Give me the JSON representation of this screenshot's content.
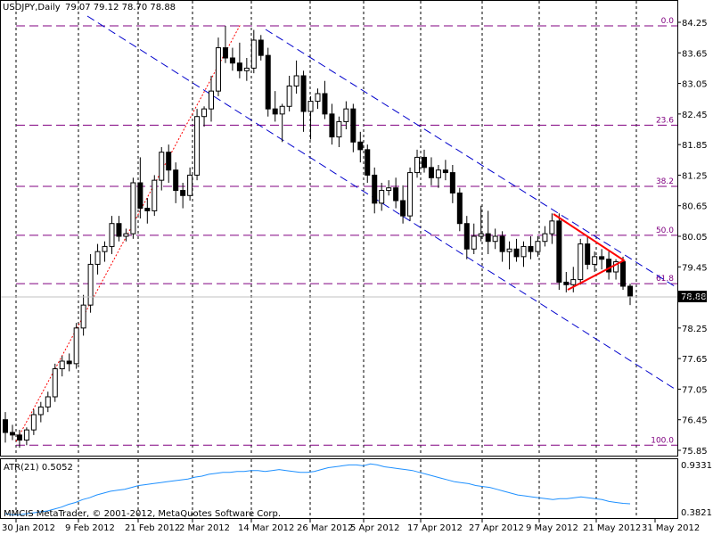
{
  "header": {
    "symbol": "USDJPY,Daily",
    "ohlc": "79.07 79.12 78.70 78.88"
  },
  "indicator": {
    "label": "ATR(21) 0.5052",
    "max_label": "0.9331",
    "min_label": "0.3821"
  },
  "copyright": "MMCIS MetaTrader, © 2001-2012, MetaQuotes Software Corp.",
  "price_axis": {
    "ticks": [
      "84.25",
      "83.65",
      "83.05",
      "82.45",
      "81.85",
      "81.25",
      "80.65",
      "80.05",
      "79.45",
      "78.85",
      "78.25",
      "77.65",
      "77.05",
      "76.45",
      "75.85"
    ],
    "current_price": "78.88"
  },
  "date_axis": {
    "ticks": [
      "30 Jan 2012",
      "9 Feb 2012",
      "21 Feb 2012",
      "2 Mar 2012",
      "14 Mar 2012",
      "26 Mar 2012",
      "5 Apr 2012",
      "17 Apr 2012",
      "27 Apr 2012",
      "9 May 2012",
      "21 May 2012",
      "31 May 2012"
    ]
  },
  "fib_levels": [
    {
      "label": "0.0",
      "price": 84.18
    },
    {
      "label": "23.6",
      "price": 82.23
    },
    {
      "label": "38.2",
      "price": 81.03
    },
    {
      "label": "50.0",
      "price": 80.07
    },
    {
      "label": "61.8",
      "price": 79.12
    },
    {
      "label": "100.0",
      "price": 75.95
    }
  ],
  "colors": {
    "background": "#ffffff",
    "fib_line": "#800080",
    "channel": "#0000cc",
    "trend": "#ff0000",
    "triangle": "#ff0000",
    "atr": "#1e90ff",
    "candle": "#000000"
  },
  "chart_data": {
    "type": "candlestick",
    "symbol": "USDJPY",
    "timeframe": "Daily",
    "ylim": [
      75.6,
      84.6
    ],
    "candles": [
      {
        "o": 76.45,
        "h": 76.6,
        "l": 76.0,
        "c": 76.2
      },
      {
        "o": 76.2,
        "h": 76.35,
        "l": 76.05,
        "c": 76.15
      },
      {
        "o": 76.15,
        "h": 76.25,
        "l": 75.9,
        "c": 76.05
      },
      {
        "o": 76.05,
        "h": 76.3,
        "l": 75.95,
        "c": 76.25
      },
      {
        "o": 76.25,
        "h": 76.65,
        "l": 76.15,
        "c": 76.55
      },
      {
        "o": 76.55,
        "h": 76.8,
        "l": 76.4,
        "c": 76.7
      },
      {
        "o": 76.7,
        "h": 77.0,
        "l": 76.6,
        "c": 76.9
      },
      {
        "o": 76.9,
        "h": 77.55,
        "l": 76.8,
        "c": 77.45
      },
      {
        "o": 77.45,
        "h": 77.7,
        "l": 77.3,
        "c": 77.6
      },
      {
        "o": 77.6,
        "h": 77.75,
        "l": 77.4,
        "c": 77.55
      },
      {
        "o": 77.55,
        "h": 78.35,
        "l": 77.45,
        "c": 78.25
      },
      {
        "o": 78.25,
        "h": 78.9,
        "l": 78.1,
        "c": 78.7
      },
      {
        "o": 78.7,
        "h": 79.7,
        "l": 78.55,
        "c": 79.5
      },
      {
        "o": 79.5,
        "h": 79.9,
        "l": 79.3,
        "c": 79.75
      },
      {
        "o": 79.75,
        "h": 79.95,
        "l": 79.55,
        "c": 79.85
      },
      {
        "o": 79.85,
        "h": 80.45,
        "l": 79.7,
        "c": 80.3
      },
      {
        "o": 80.3,
        "h": 80.45,
        "l": 79.95,
        "c": 80.05
      },
      {
        "o": 80.05,
        "h": 80.2,
        "l": 79.95,
        "c": 80.1
      },
      {
        "o": 80.1,
        "h": 81.2,
        "l": 80.0,
        "c": 81.1
      },
      {
        "o": 81.1,
        "h": 81.6,
        "l": 80.4,
        "c": 80.6
      },
      {
        "o": 80.6,
        "h": 80.8,
        "l": 80.3,
        "c": 80.55
      },
      {
        "o": 80.55,
        "h": 81.25,
        "l": 80.45,
        "c": 81.15
      },
      {
        "o": 81.15,
        "h": 81.8,
        "l": 80.95,
        "c": 81.7
      },
      {
        "o": 81.7,
        "h": 81.85,
        "l": 81.1,
        "c": 81.35
      },
      {
        "o": 81.35,
        "h": 81.5,
        "l": 80.7,
        "c": 80.95
      },
      {
        "o": 80.95,
        "h": 81.1,
        "l": 80.6,
        "c": 80.85
      },
      {
        "o": 80.85,
        "h": 81.4,
        "l": 80.75,
        "c": 81.25
      },
      {
        "o": 81.25,
        "h": 82.55,
        "l": 81.15,
        "c": 82.4
      },
      {
        "o": 82.4,
        "h": 82.6,
        "l": 82.2,
        "c": 82.55
      },
      {
        "o": 82.55,
        "h": 83.2,
        "l": 82.3,
        "c": 82.9
      },
      {
        "o": 82.9,
        "h": 83.95,
        "l": 82.8,
        "c": 83.75
      },
      {
        "o": 83.75,
        "h": 84.18,
        "l": 83.45,
        "c": 83.55
      },
      {
        "o": 83.55,
        "h": 83.75,
        "l": 83.3,
        "c": 83.45
      },
      {
        "o": 83.45,
        "h": 83.85,
        "l": 83.15,
        "c": 83.3
      },
      {
        "o": 83.3,
        "h": 83.55,
        "l": 83.1,
        "c": 83.35
      },
      {
        "o": 83.35,
        "h": 84.1,
        "l": 83.25,
        "c": 83.9
      },
      {
        "o": 83.9,
        "h": 84.0,
        "l": 83.5,
        "c": 83.6
      },
      {
        "o": 83.6,
        "h": 83.75,
        "l": 82.4,
        "c": 82.55
      },
      {
        "o": 82.55,
        "h": 82.9,
        "l": 82.3,
        "c": 82.45
      },
      {
        "o": 82.45,
        "h": 82.65,
        "l": 81.9,
        "c": 82.6
      },
      {
        "o": 82.6,
        "h": 83.2,
        "l": 82.5,
        "c": 83.0
      },
      {
        "o": 83.0,
        "h": 83.5,
        "l": 82.85,
        "c": 83.2
      },
      {
        "o": 83.2,
        "h": 83.3,
        "l": 82.1,
        "c": 82.5
      },
      {
        "o": 82.5,
        "h": 82.8,
        "l": 81.95,
        "c": 82.7
      },
      {
        "o": 82.7,
        "h": 82.95,
        "l": 82.55,
        "c": 82.85
      },
      {
        "o": 82.85,
        "h": 83.1,
        "l": 82.35,
        "c": 82.45
      },
      {
        "o": 82.45,
        "h": 82.65,
        "l": 81.85,
        "c": 82.0
      },
      {
        "o": 82.0,
        "h": 82.4,
        "l": 81.8,
        "c": 82.3
      },
      {
        "o": 82.3,
        "h": 82.7,
        "l": 82.15,
        "c": 82.55
      },
      {
        "o": 82.55,
        "h": 82.65,
        "l": 81.7,
        "c": 81.9
      },
      {
        "o": 81.9,
        "h": 82.1,
        "l": 81.5,
        "c": 81.75
      },
      {
        "o": 81.75,
        "h": 81.85,
        "l": 81.1,
        "c": 81.25
      },
      {
        "o": 81.25,
        "h": 81.4,
        "l": 80.5,
        "c": 80.7
      },
      {
        "o": 80.7,
        "h": 81.1,
        "l": 80.55,
        "c": 80.95
      },
      {
        "o": 80.95,
        "h": 81.15,
        "l": 80.85,
        "c": 81.0
      },
      {
        "o": 81.0,
        "h": 81.2,
        "l": 80.6,
        "c": 80.75
      },
      {
        "o": 80.75,
        "h": 81.05,
        "l": 80.3,
        "c": 80.45
      },
      {
        "o": 80.45,
        "h": 81.4,
        "l": 80.35,
        "c": 81.3
      },
      {
        "o": 81.3,
        "h": 81.75,
        "l": 81.2,
        "c": 81.6
      },
      {
        "o": 81.6,
        "h": 81.75,
        "l": 81.3,
        "c": 81.4
      },
      {
        "o": 81.4,
        "h": 81.6,
        "l": 81.05,
        "c": 81.2
      },
      {
        "o": 81.2,
        "h": 81.45,
        "l": 81.0,
        "c": 81.35
      },
      {
        "o": 81.35,
        "h": 81.55,
        "l": 81.15,
        "c": 81.3
      },
      {
        "o": 81.3,
        "h": 81.45,
        "l": 80.7,
        "c": 80.9
      },
      {
        "o": 80.9,
        "h": 81.0,
        "l": 80.15,
        "c": 80.3
      },
      {
        "o": 80.3,
        "h": 80.45,
        "l": 79.6,
        "c": 79.8
      },
      {
        "o": 79.8,
        "h": 80.3,
        "l": 79.7,
        "c": 80.05
      },
      {
        "o": 80.05,
        "h": 80.65,
        "l": 79.95,
        "c": 80.1
      },
      {
        "o": 80.1,
        "h": 80.55,
        "l": 79.7,
        "c": 79.95
      },
      {
        "o": 79.95,
        "h": 80.2,
        "l": 79.8,
        "c": 80.05
      },
      {
        "o": 80.05,
        "h": 80.15,
        "l": 79.55,
        "c": 79.75
      },
      {
        "o": 79.75,
        "h": 79.95,
        "l": 79.4,
        "c": 79.8
      },
      {
        "o": 79.8,
        "h": 80.0,
        "l": 79.55,
        "c": 79.65
      },
      {
        "o": 79.65,
        "h": 79.95,
        "l": 79.45,
        "c": 79.85
      },
      {
        "o": 79.85,
        "h": 80.05,
        "l": 79.6,
        "c": 79.75
      },
      {
        "o": 79.75,
        "h": 80.05,
        "l": 79.65,
        "c": 79.95
      },
      {
        "o": 79.95,
        "h": 80.25,
        "l": 79.85,
        "c": 80.1
      },
      {
        "o": 80.1,
        "h": 80.5,
        "l": 79.9,
        "c": 80.35
      },
      {
        "o": 80.35,
        "h": 80.5,
        "l": 79.0,
        "c": 79.15
      },
      {
        "o": 79.15,
        "h": 79.35,
        "l": 78.95,
        "c": 79.1
      },
      {
        "o": 79.1,
        "h": 79.45,
        "l": 78.95,
        "c": 79.2
      },
      {
        "o": 79.2,
        "h": 80.0,
        "l": 79.1,
        "c": 79.9
      },
      {
        "o": 79.9,
        "h": 80.05,
        "l": 79.4,
        "c": 79.5
      },
      {
        "o": 79.5,
        "h": 79.75,
        "l": 79.35,
        "c": 79.65
      },
      {
        "o": 79.65,
        "h": 79.8,
        "l": 79.4,
        "c": 79.6
      },
      {
        "o": 79.6,
        "h": 79.75,
        "l": 79.2,
        "c": 79.35
      },
      {
        "o": 79.35,
        "h": 79.6,
        "l": 79.2,
        "c": 79.55
      },
      {
        "o": 79.55,
        "h": 79.65,
        "l": 79.0,
        "c": 79.07
      },
      {
        "o": 79.07,
        "h": 79.12,
        "l": 78.7,
        "c": 78.88
      }
    ],
    "atr": [
      0.4,
      0.39,
      0.39,
      0.4,
      0.41,
      0.42,
      0.43,
      0.45,
      0.47,
      0.5,
      0.52,
      0.55,
      0.57,
      0.6,
      0.62,
      0.64,
      0.65,
      0.66,
      0.68,
      0.7,
      0.71,
      0.72,
      0.73,
      0.74,
      0.75,
      0.76,
      0.77,
      0.79,
      0.8,
      0.82,
      0.83,
      0.84,
      0.84,
      0.85,
      0.85,
      0.86,
      0.86,
      0.85,
      0.86,
      0.87,
      0.86,
      0.85,
      0.84,
      0.84,
      0.85,
      0.87,
      0.89,
      0.9,
      0.91,
      0.92,
      0.92,
      0.91,
      0.93,
      0.92,
      0.9,
      0.89,
      0.88,
      0.87,
      0.86,
      0.84,
      0.82,
      0.8,
      0.78,
      0.76,
      0.74,
      0.73,
      0.72,
      0.7,
      0.69,
      0.68,
      0.66,
      0.64,
      0.62,
      0.6,
      0.59,
      0.58,
      0.57,
      0.56,
      0.55,
      0.56,
      0.56,
      0.57,
      0.58,
      0.57,
      0.56,
      0.55,
      0.53,
      0.52,
      0.51,
      0.5052
    ]
  }
}
